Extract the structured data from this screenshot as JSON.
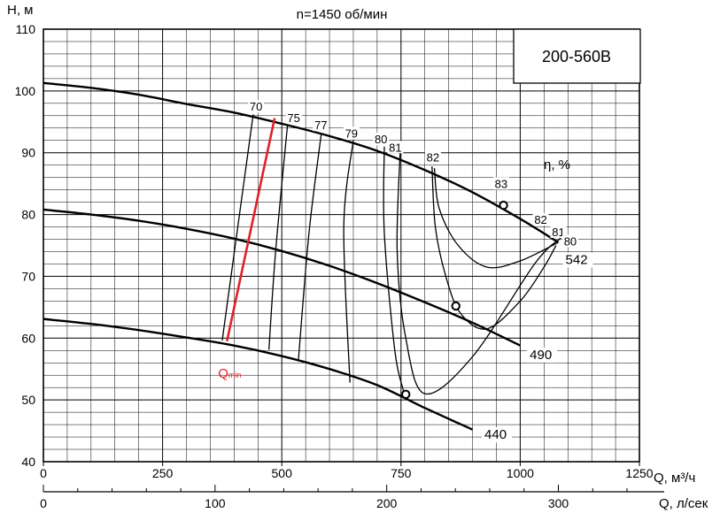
{
  "chart_data": {
    "type": "line",
    "title": "n=1450 об/мин",
    "model": "200-560B",
    "ylabel": "H, м",
    "xlabel": "Q, м³/ч",
    "x2label": "Q, л/сек",
    "xlim": [
      0,
      1250
    ],
    "ylim": [
      40,
      110
    ],
    "x2lim": [
      0,
      347.2
    ],
    "xticks": [
      0,
      250,
      500,
      750,
      1000,
      1250
    ],
    "x2ticks": [
      0,
      100,
      200,
      300
    ],
    "yticks": [
      40,
      50,
      60,
      70,
      80,
      90,
      100,
      110
    ],
    "grid": true,
    "efficiency_label": "η, %",
    "series": [
      {
        "name": "542",
        "x": [
          0,
          100,
          200,
          300,
          400,
          500,
          600,
          700,
          800,
          900,
          1000,
          1080
        ],
        "y": [
          101.3,
          100.5,
          99.4,
          97.9,
          96.5,
          94.7,
          92.7,
          90.3,
          87.2,
          83.6,
          79.3,
          75.5
        ]
      },
      {
        "name": "490",
        "x": [
          0,
          100,
          200,
          300,
          400,
          500,
          600,
          700,
          800,
          900,
          1000
        ],
        "y": [
          80.8,
          80.0,
          79.0,
          77.7,
          76.1,
          74.1,
          71.7,
          68.9,
          65.8,
          62.5,
          58.8
        ]
      },
      {
        "name": "440",
        "x": [
          0,
          100,
          200,
          300,
          400,
          500,
          600,
          700,
          800,
          900
        ],
        "y": [
          63.1,
          62.3,
          61.3,
          60.1,
          58.8,
          57.1,
          55.0,
          52.4,
          48.7,
          45.2
        ]
      }
    ],
    "operating_points": [
      {
        "x": 965,
        "y": 81.5
      },
      {
        "x": 865,
        "y": 65.2
      },
      {
        "x": 760,
        "y": 50.9
      }
    ],
    "efficiency_contours": [
      {
        "label": "70",
        "points": [
          [
            440,
            96.2
          ],
          [
            375,
            59.6
          ]
        ]
      },
      {
        "label": "75",
        "points": [
          [
            512,
            94.5
          ],
          [
            487,
            74.0
          ],
          [
            473,
            58.1
          ]
        ]
      },
      {
        "label": "77",
        "points": [
          [
            583,
            93.2
          ],
          [
            557,
            77.0
          ],
          [
            535,
            56.6
          ]
        ]
      },
      {
        "label": "79",
        "points": [
          [
            650,
            92.0
          ],
          [
            630,
            78.0
          ],
          [
            643,
            52.8
          ]
        ]
      },
      {
        "label": "80",
        "points": [
          [
            715,
            91.0
          ],
          [
            715,
            77.0
          ],
          [
            737,
            58.0
          ],
          [
            755,
            51.5
          ]
        ]
      },
      {
        "label": "81",
        "points": [
          [
            748,
            89.9
          ],
          [
            742,
            74.0
          ],
          [
            760,
            60.0
          ],
          [
            800,
            51.0
          ],
          [
            900,
            57.0
          ],
          [
            1030,
            72.0
          ],
          [
            1085,
            76.2
          ]
        ]
      },
      {
        "label": "82",
        "points": [
          [
            815,
            87.8
          ],
          [
            822,
            78.0
          ],
          [
            844,
            70.0
          ],
          [
            875,
            64.0
          ],
          [
            930,
            61.5
          ],
          [
            1000,
            66.0
          ],
          [
            1050,
            71.5
          ],
          [
            1075,
            75.0
          ]
        ]
      },
      {
        "label": "83",
        "points": [
          [
            820,
            87.5
          ],
          [
            830,
            81.0
          ],
          [
            870,
            75.0
          ],
          [
            930,
            71.5
          ],
          [
            1000,
            72.5
          ],
          [
            1080,
            75.5
          ]
        ]
      }
    ],
    "efficiency_labels": [
      {
        "label": "70",
        "x": 446,
        "y": 96.8
      },
      {
        "label": "75",
        "x": 525,
        "y": 95.0
      },
      {
        "label": "77",
        "x": 582,
        "y": 93.8
      },
      {
        "label": "79",
        "x": 646,
        "y": 92.5
      },
      {
        "label": "80",
        "x": 708,
        "y": 91.5
      },
      {
        "label": "81",
        "x": 738,
        "y": 90.2
      },
      {
        "label": "82",
        "x": 817,
        "y": 88.6
      },
      {
        "label": "83",
        "x": 960,
        "y": 84.3
      },
      {
        "label": "82",
        "x": 1043,
        "y": 78.5
      },
      {
        "label": "81",
        "x": 1080,
        "y": 76.5
      },
      {
        "label": "80",
        "x": 1105,
        "y": 75.0
      }
    ],
    "qmin": {
      "label": "Q",
      "subscript": "min",
      "points": [
        [
          485,
          95.6
        ],
        [
          385,
          59.5
        ]
      ]
    }
  }
}
